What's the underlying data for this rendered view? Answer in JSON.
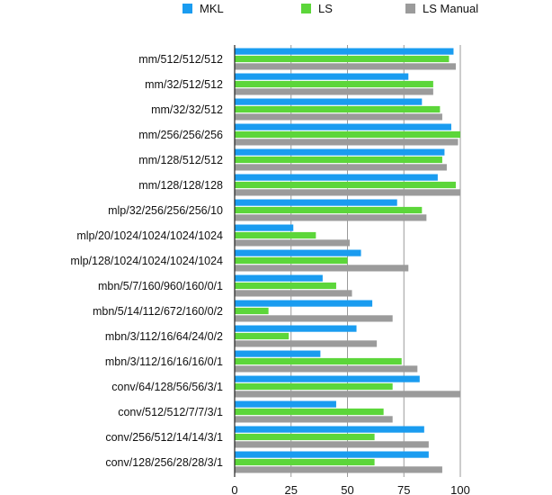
{
  "chart_data": {
    "type": "bar",
    "orientation": "horizontal",
    "categories": [
      "mm/512/512/512",
      "mm/32/512/512",
      "mm/32/32/512",
      "mm/256/256/256",
      "mm/128/512/512",
      "mm/128/128/128",
      "mlp/32/256/256/256/10",
      "mlp/20/1024/1024/1024/1024",
      "mlp/128/1024/1024/1024/1024",
      "mbn/5/7/160/960/160/0/1",
      "mbn/5/14/112/672/160/0/2",
      "mbn/3/112/16/64/24/0/2",
      "mbn/3/112/16/16/16/0/1",
      "conv/64/128/56/56/3/1",
      "conv/512/512/7/7/3/1",
      "conv/256/512/14/14/3/1",
      "conv/128/256/28/28/3/1"
    ],
    "series": [
      {
        "name": "MKL",
        "color": "#1a9cf0",
        "values": [
          97,
          77,
          83,
          96,
          93,
          90,
          72,
          26,
          56,
          39,
          61,
          54,
          38,
          82,
          45,
          84,
          86
        ]
      },
      {
        "name": "LS",
        "color": "#5cd63a",
        "values": [
          95,
          88,
          91,
          100,
          92,
          98,
          83,
          36,
          50,
          45,
          15,
          24,
          74,
          70,
          66,
          62,
          62
        ]
      },
      {
        "name": "LS Manual",
        "color": "#9b9b9b",
        "values": [
          98,
          88,
          92,
          99,
          94,
          100,
          85,
          51,
          77,
          52,
          70,
          63,
          81,
          100,
          70,
          86,
          92
        ]
      }
    ],
    "x_ticks": [
      "0",
      "25",
      "50",
      "75",
      "100"
    ],
    "xlim": [
      0,
      100
    ],
    "legend_position": "top",
    "grid": "vertical"
  }
}
